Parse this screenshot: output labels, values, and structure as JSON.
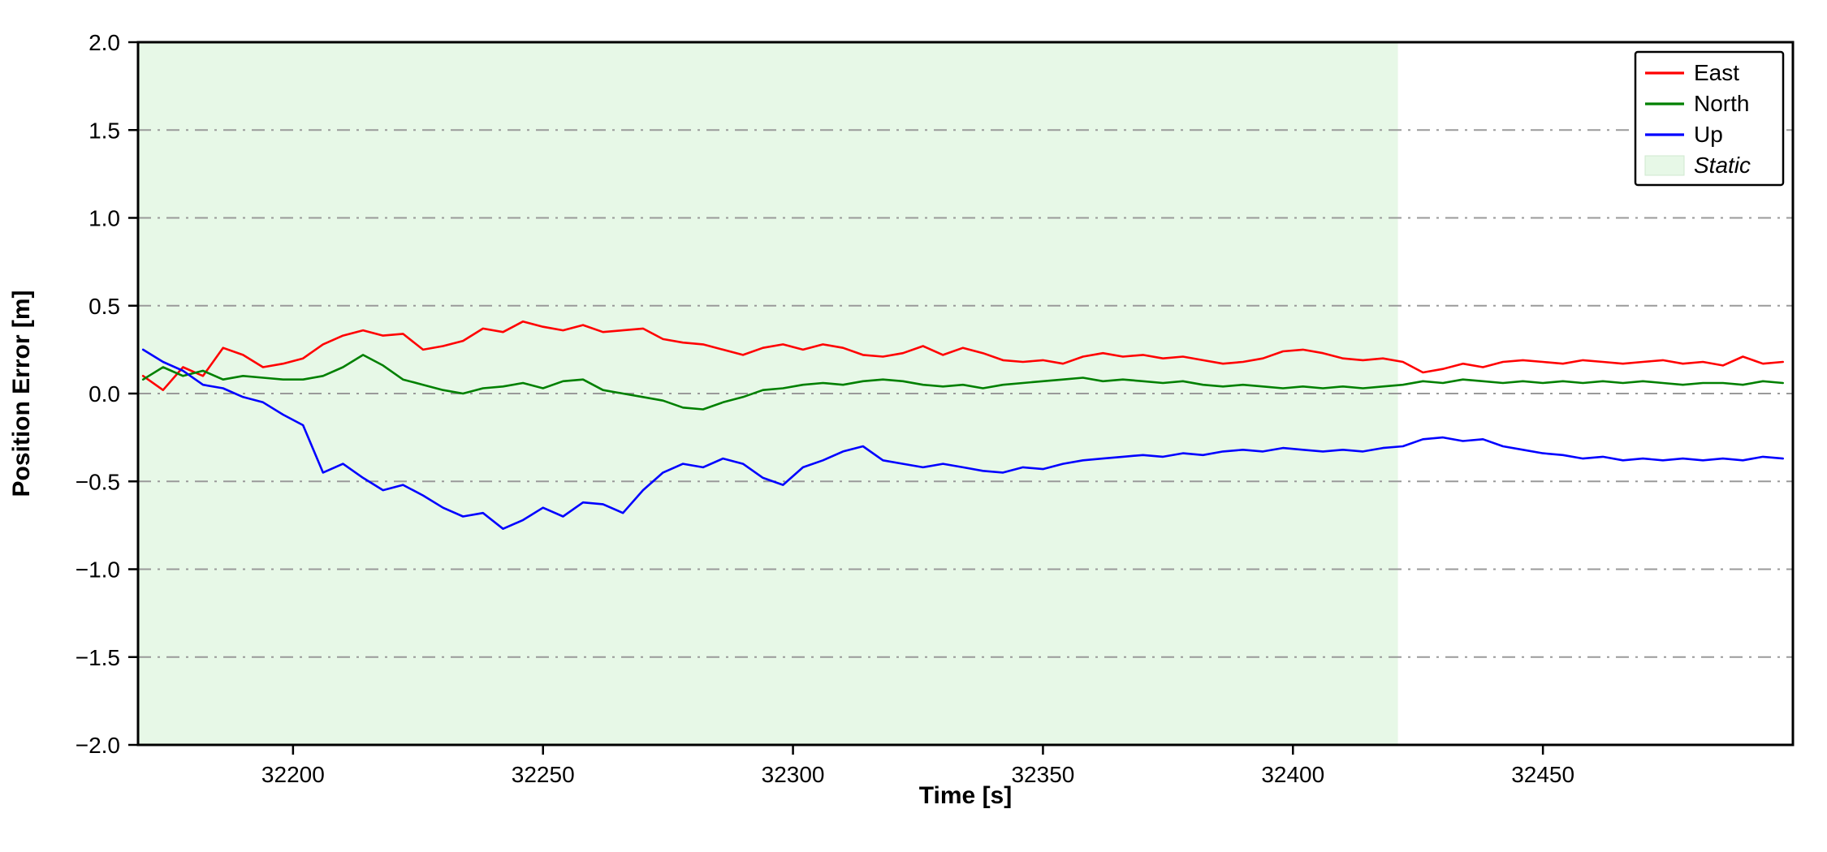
{
  "chart_data": {
    "type": "line",
    "title": "",
    "xlabel": "Time [s]",
    "ylabel": "Position Error [m]",
    "xlim": [
      32169,
      32500
    ],
    "ylim": [
      -2.0,
      2.0
    ],
    "xticks": [
      32200,
      32250,
      32300,
      32350,
      32400,
      32450
    ],
    "yticks": [
      2.0,
      1.5,
      1.0,
      0.5,
      0.0,
      -0.5,
      -1.0,
      -1.5,
      -2.0
    ],
    "grid": {
      "y_values": [
        1.5,
        1.0,
        0.5,
        0.0,
        -0.5,
        -1.0,
        -1.5
      ],
      "style": "dash-dot",
      "color": "#9a9a9a"
    },
    "static_region": {
      "label": "Static",
      "x_start": 32169,
      "x_end": 32421,
      "color": "#e7f8e7"
    },
    "x": [
      32170,
      32174,
      32178,
      32182,
      32186,
      32190,
      32194,
      32198,
      32202,
      32206,
      32210,
      32214,
      32218,
      32222,
      32226,
      32230,
      32234,
      32238,
      32242,
      32246,
      32250,
      32254,
      32258,
      32262,
      32266,
      32270,
      32274,
      32278,
      32282,
      32286,
      32290,
      32294,
      32298,
      32302,
      32306,
      32310,
      32314,
      32318,
      32322,
      32326,
      32330,
      32334,
      32338,
      32342,
      32346,
      32350,
      32354,
      32358,
      32362,
      32366,
      32370,
      32374,
      32378,
      32382,
      32386,
      32390,
      32394,
      32398,
      32402,
      32406,
      32410,
      32414,
      32418,
      32422,
      32426,
      32430,
      32434,
      32438,
      32442,
      32446,
      32450,
      32454,
      32458,
      32462,
      32466,
      32470,
      32474,
      32478,
      32482,
      32486,
      32490,
      32494,
      32498
    ],
    "series": [
      {
        "name": "East",
        "color": "#ff0000",
        "values": [
          0.1,
          0.02,
          0.15,
          0.1,
          0.26,
          0.22,
          0.15,
          0.17,
          0.2,
          0.28,
          0.33,
          0.36,
          0.33,
          0.34,
          0.25,
          0.27,
          0.3,
          0.37,
          0.35,
          0.41,
          0.38,
          0.36,
          0.39,
          0.35,
          0.36,
          0.37,
          0.31,
          0.29,
          0.28,
          0.25,
          0.22,
          0.26,
          0.28,
          0.25,
          0.28,
          0.26,
          0.22,
          0.21,
          0.23,
          0.27,
          0.22,
          0.26,
          0.23,
          0.19,
          0.18,
          0.19,
          0.17,
          0.21,
          0.23,
          0.21,
          0.22,
          0.2,
          0.21,
          0.19,
          0.17,
          0.18,
          0.2,
          0.24,
          0.25,
          0.23,
          0.2,
          0.19,
          0.2,
          0.18,
          0.12,
          0.14,
          0.17,
          0.15,
          0.18,
          0.19,
          0.18,
          0.17,
          0.19,
          0.18,
          0.17,
          0.18,
          0.19,
          0.17,
          0.18,
          0.16,
          0.21,
          0.17,
          0.18
        ]
      },
      {
        "name": "North",
        "color": "#008000",
        "values": [
          0.08,
          0.15,
          0.1,
          0.13,
          0.08,
          0.1,
          0.09,
          0.08,
          0.08,
          0.1,
          0.15,
          0.22,
          0.16,
          0.08,
          0.05,
          0.02,
          0.0,
          0.03,
          0.04,
          0.06,
          0.03,
          0.07,
          0.08,
          0.02,
          0.0,
          -0.02,
          -0.04,
          -0.08,
          -0.09,
          -0.05,
          -0.02,
          0.02,
          0.03,
          0.05,
          0.06,
          0.05,
          0.07,
          0.08,
          0.07,
          0.05,
          0.04,
          0.05,
          0.03,
          0.05,
          0.06,
          0.07,
          0.08,
          0.09,
          0.07,
          0.08,
          0.07,
          0.06,
          0.07,
          0.05,
          0.04,
          0.05,
          0.04,
          0.03,
          0.04,
          0.03,
          0.04,
          0.03,
          0.04,
          0.05,
          0.07,
          0.06,
          0.08,
          0.07,
          0.06,
          0.07,
          0.06,
          0.07,
          0.06,
          0.07,
          0.06,
          0.07,
          0.06,
          0.05,
          0.06,
          0.06,
          0.05,
          0.07,
          0.06
        ]
      },
      {
        "name": "Up",
        "color": "#0000ff",
        "values": [
          0.25,
          0.18,
          0.13,
          0.05,
          0.03,
          -0.02,
          -0.05,
          -0.12,
          -0.18,
          -0.45,
          -0.4,
          -0.48,
          -0.55,
          -0.52,
          -0.58,
          -0.65,
          -0.7,
          -0.68,
          -0.77,
          -0.72,
          -0.65,
          -0.7,
          -0.62,
          -0.63,
          -0.68,
          -0.55,
          -0.45,
          -0.4,
          -0.42,
          -0.37,
          -0.4,
          -0.48,
          -0.52,
          -0.42,
          -0.38,
          -0.33,
          -0.3,
          -0.38,
          -0.4,
          -0.42,
          -0.4,
          -0.42,
          -0.44,
          -0.45,
          -0.42,
          -0.43,
          -0.4,
          -0.38,
          -0.37,
          -0.36,
          -0.35,
          -0.36,
          -0.34,
          -0.35,
          -0.33,
          -0.32,
          -0.33,
          -0.31,
          -0.32,
          -0.33,
          -0.32,
          -0.33,
          -0.31,
          -0.3,
          -0.26,
          -0.25,
          -0.27,
          -0.26,
          -0.3,
          -0.32,
          -0.34,
          -0.35,
          -0.37,
          -0.36,
          -0.38,
          -0.37,
          -0.38,
          -0.37,
          -0.38,
          -0.37,
          -0.38,
          -0.36,
          -0.37
        ]
      }
    ],
    "legend": {
      "position": "top-right",
      "entries": [
        {
          "label": "East",
          "type": "line",
          "color": "#ff0000",
          "italic": false
        },
        {
          "label": "North",
          "type": "line",
          "color": "#008000",
          "italic": false
        },
        {
          "label": "Up",
          "type": "line",
          "color": "#0000ff",
          "italic": false
        },
        {
          "label": "Static",
          "type": "patch",
          "color": "#e7f8e7",
          "italic": true
        }
      ]
    }
  }
}
